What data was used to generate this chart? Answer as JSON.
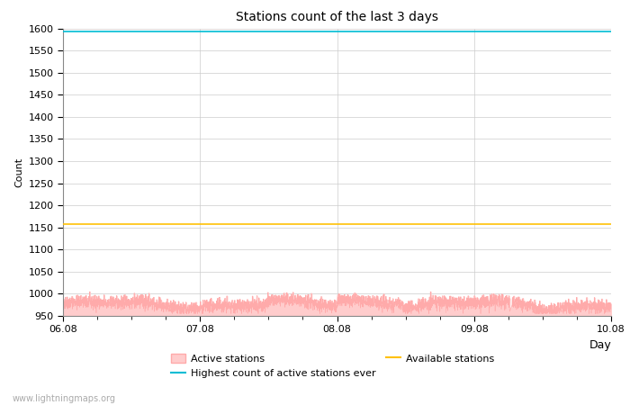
{
  "title": "Stations count of the last 3 days",
  "xlabel": "Day",
  "ylabel": "Count",
  "ylim": [
    950,
    1600
  ],
  "yticks": [
    950,
    1000,
    1050,
    1100,
    1150,
    1200,
    1250,
    1300,
    1350,
    1400,
    1450,
    1500,
    1550,
    1600
  ],
  "x_start": 0,
  "x_end": 4,
  "xtick_positions": [
    0,
    1,
    2,
    3,
    4
  ],
  "xtick_labels": [
    "06.08",
    "07.08",
    "08.08",
    "09.08",
    "10.08"
  ],
  "highest_ever_value": 1593,
  "available_stations_value": 1158,
  "active_fill_color": "#ffcccc",
  "active_line_color": "#ffaaaa",
  "highest_ever_color": "#00bcd4",
  "available_color": "#ffc107",
  "background_color": "#ffffff",
  "grid_color": "#cccccc",
  "watermark": "www.lightningmaps.org",
  "legend_entries": [
    "Active stations",
    "Highest count of active stations ever",
    "Available stations"
  ],
  "active_base": 975,
  "active_noise_std": 7,
  "active_bump_amount": 12,
  "active_clip_min": 955,
  "active_clip_max": 1005
}
